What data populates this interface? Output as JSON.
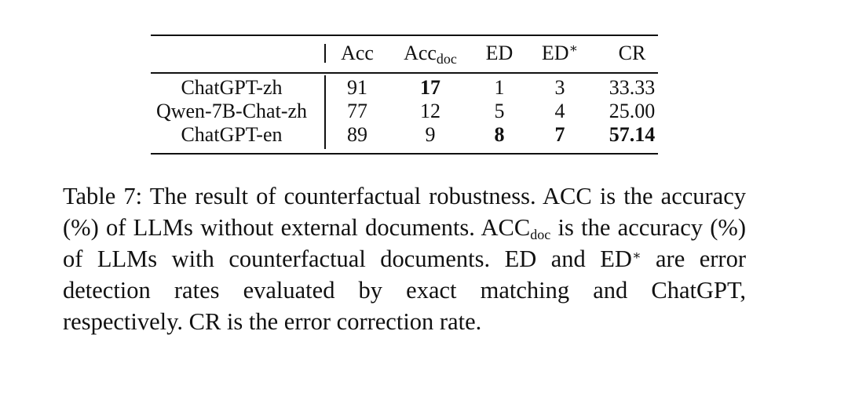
{
  "table": {
    "headers": [
      "",
      "Acc",
      "Acc",
      "ED",
      "ED",
      "CR"
    ],
    "header_subscripts": {
      "2": "doc"
    },
    "header_superscripts": {
      "4": "∗"
    },
    "rows": [
      {
        "model": "ChatGPT-zh",
        "values": [
          "91",
          "17",
          "1",
          "3",
          "33.33"
        ],
        "bold": [
          false,
          true,
          false,
          false,
          false
        ]
      },
      {
        "model": "Qwen-7B-Chat-zh",
        "values": [
          "77",
          "12",
          "5",
          "4",
          "25.00"
        ],
        "bold": [
          false,
          false,
          false,
          false,
          false
        ]
      },
      {
        "model": "ChatGPT-en",
        "values": [
          "89",
          "9",
          "8",
          "7",
          "57.14"
        ],
        "bold": [
          false,
          false,
          true,
          true,
          true
        ]
      }
    ]
  },
  "caption": {
    "part1": "Table 7: The result of counterfactual robustness. ACC is the accuracy (%) of LLMs without external documents. ACC",
    "sub1": "doc",
    "part2": " is the accuracy (%) of LLMs with counterfactual documents. ED and ED",
    "sup1": "∗",
    "part3": " are error detection rates evaluated by exact matching and ChatGPT, respectively. CR is the error correction rate."
  }
}
